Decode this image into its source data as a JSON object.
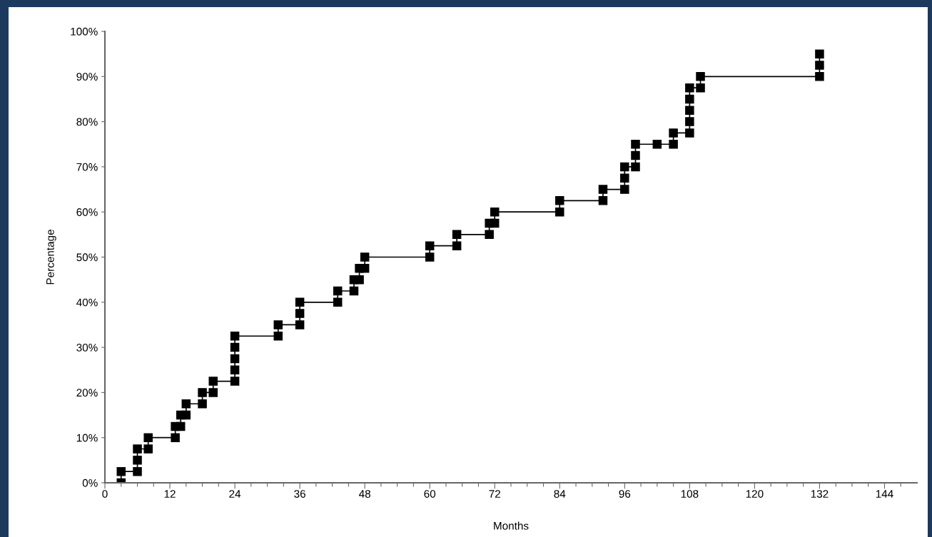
{
  "chart_data": {
    "type": "step",
    "xlabel": "Months",
    "ylabel": "Percentage",
    "series": [
      {
        "color": "#000000",
        "x": [
          3,
          3,
          6,
          6,
          6,
          8,
          8,
          13,
          13,
          14,
          14,
          15,
          15,
          18,
          18,
          20,
          20,
          24,
          24,
          24,
          24,
          24,
          32,
          32,
          36,
          36,
          36,
          43,
          43,
          46,
          46,
          47,
          47,
          48,
          48,
          60,
          60,
          65,
          65,
          71,
          71,
          72,
          72,
          84,
          84,
          92,
          92,
          96,
          96,
          96,
          98,
          98,
          98,
          102,
          105,
          105,
          108,
          108,
          108,
          108,
          108,
          110,
          110,
          132,
          132,
          132
        ],
        "values": [
          0,
          2.5,
          2.5,
          5,
          7.5,
          7.5,
          10,
          10,
          12.5,
          12.5,
          15,
          15,
          17.5,
          17.5,
          20,
          20,
          22.5,
          22.5,
          25,
          27.5,
          30,
          32.5,
          32.5,
          35,
          35,
          37.5,
          40,
          40,
          42.5,
          42.5,
          45,
          45,
          47.5,
          47.5,
          50,
          50,
          52.5,
          52.5,
          55,
          55,
          57.5,
          57.5,
          60,
          60,
          62.5,
          62.5,
          65,
          65,
          67.5,
          70,
          70,
          72.5,
          75,
          75,
          75,
          77.5,
          77.5,
          80,
          82.5,
          85,
          87.5,
          87.5,
          90,
          90,
          92.5,
          95
        ]
      }
    ],
    "marker": "square",
    "line_style": "solid",
    "grid": false,
    "xlim": [
      0,
      150
    ],
    "ylim": [
      0,
      100
    ],
    "xticks": [
      0,
      {
        "value": 3,
        "label": null
      },
      {
        "value": 6,
        "label": null
      },
      {
        "value": 9,
        "label": null
      },
      12,
      {
        "value": 15,
        "label": null
      },
      {
        "value": 18,
        "label": null
      },
      {
        "value": 21,
        "label": null
      },
      24,
      {
        "value": 27,
        "label": null
      },
      {
        "value": 30,
        "label": null
      },
      {
        "value": 33,
        "label": null
      },
      36,
      {
        "value": 39,
        "label": null
      },
      {
        "value": 42,
        "label": null
      },
      {
        "value": 45,
        "label": null
      },
      48,
      {
        "value": 51,
        "label": null
      },
      {
        "value": 54,
        "label": null
      },
      {
        "value": 57,
        "label": null
      },
      60,
      {
        "value": 63,
        "label": null
      },
      {
        "value": 66,
        "label": null
      },
      {
        "value": 69,
        "label": null
      },
      72,
      {
        "value": 75,
        "label": null
      },
      {
        "value": 78,
        "label": null
      },
      {
        "value": 81,
        "label": null
      },
      84,
      {
        "value": 87,
        "label": null
      },
      {
        "value": 90,
        "label": null
      },
      {
        "value": 93,
        "label": null
      },
      96,
      {
        "value": 99,
        "label": null
      },
      {
        "value": 102,
        "label": null
      },
      {
        "value": 105,
        "label": null
      },
      108,
      {
        "value": 111,
        "label": null
      },
      {
        "value": 114,
        "label": null
      },
      {
        "value": 117,
        "label": null
      },
      120,
      {
        "value": 123,
        "label": null
      },
      {
        "value": 126,
        "label": null
      },
      {
        "value": 129,
        "label": null
      },
      132,
      {
        "value": 135,
        "label": null
      },
      {
        "value": 138,
        "label": null
      },
      {
        "value": 141,
        "label": null
      },
      144,
      {
        "value": 147,
        "label": null
      }
    ],
    "yticks": [
      {
        "value": 0,
        "label": "0%"
      },
      {
        "value": 10,
        "label": "10%"
      },
      {
        "value": 20,
        "label": "20%"
      },
      {
        "value": 30,
        "label": "30%"
      },
      {
        "value": 40,
        "label": "40%"
      },
      {
        "value": 50,
        "label": "50%"
      },
      {
        "value": 60,
        "label": "60%"
      },
      {
        "value": 70,
        "label": "70%"
      },
      {
        "value": 80,
        "label": "80%"
      },
      {
        "value": 90,
        "label": "90%"
      },
      {
        "value": 100,
        "label": "100%"
      }
    ]
  }
}
